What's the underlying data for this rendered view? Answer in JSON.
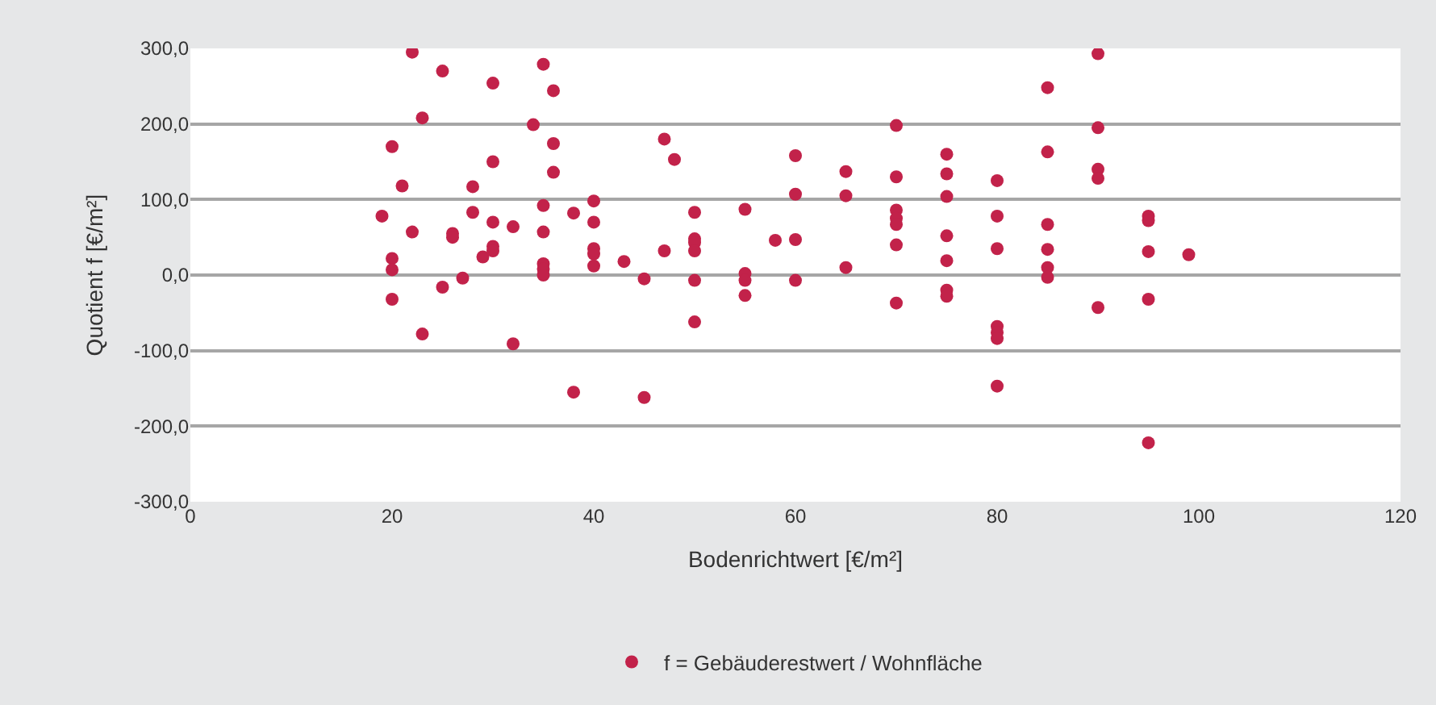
{
  "chart_data": {
    "type": "scatter",
    "xlabel": "Bodenrichtwert [€/m²]",
    "ylabel": "Quotient f [€/m²]",
    "xlim": [
      0,
      120
    ],
    "xticks": [
      0,
      20,
      40,
      60,
      80,
      100,
      120
    ],
    "ylim": [
      -300,
      300
    ],
    "yticks": [
      {
        "value": -300,
        "label": "-300,0"
      },
      {
        "value": -200,
        "label": "-200,0"
      },
      {
        "value": -100,
        "label": "-100,0"
      },
      {
        "value": 0,
        "label": "0,0"
      },
      {
        "value": 100,
        "label": "100,0"
      },
      {
        "value": 200,
        "label": "200,0"
      },
      {
        "value": 300,
        "label": "300,0"
      }
    ],
    "grid": "y",
    "legend": "bottom",
    "marker": "circle",
    "series": [
      {
        "name": "f = Gebäuderestwert / Wohnfläche",
        "color": "#c2224a",
        "x": [
          19,
          20,
          20,
          20,
          20,
          21,
          22,
          22,
          23,
          23,
          25,
          25,
          26,
          26,
          27,
          28,
          28,
          29,
          30,
          30,
          30,
          30,
          30,
          32,
          32,
          34,
          35,
          35,
          35,
          35,
          35,
          35,
          36,
          36,
          36,
          38,
          38,
          40,
          40,
          40,
          40,
          40,
          43,
          45,
          45,
          47,
          47,
          48,
          50,
          50,
          50,
          50,
          50,
          50,
          55,
          55,
          55,
          55,
          58,
          60,
          60,
          60,
          60,
          65,
          65,
          65,
          70,
          70,
          70,
          70,
          70,
          70,
          70,
          75,
          75,
          75,
          75,
          75,
          75,
          75,
          80,
          80,
          80,
          80,
          80,
          80,
          80,
          85,
          85,
          85,
          85,
          85,
          85,
          90,
          90,
          90,
          90,
          90,
          95,
          95,
          95,
          95,
          95,
          99
        ],
        "values": [
          78,
          170,
          22,
          7,
          -32,
          118,
          295,
          57,
          208,
          -78,
          270,
          -16,
          55,
          50,
          -4,
          117,
          83,
          24,
          254,
          150,
          70,
          38,
          32,
          64,
          -91,
          199,
          279,
          92,
          57,
          15,
          8,
          0,
          244,
          174,
          136,
          82,
          -155,
          98,
          70,
          35,
          28,
          12,
          18,
          -5,
          -162,
          180,
          32,
          153,
          83,
          48,
          43,
          32,
          -7,
          -62,
          87,
          2,
          -7,
          -27,
          46,
          158,
          107,
          47,
          -7,
          137,
          105,
          10,
          198,
          130,
          86,
          75,
          67,
          40,
          -37,
          160,
          134,
          104,
          52,
          19,
          -20,
          -28,
          125,
          78,
          35,
          -68,
          -76,
          -84,
          -147,
          248,
          163,
          67,
          34,
          10,
          -3,
          293,
          195,
          140,
          128,
          -43,
          78,
          72,
          31,
          -32,
          -222,
          27
        ]
      }
    ]
  }
}
